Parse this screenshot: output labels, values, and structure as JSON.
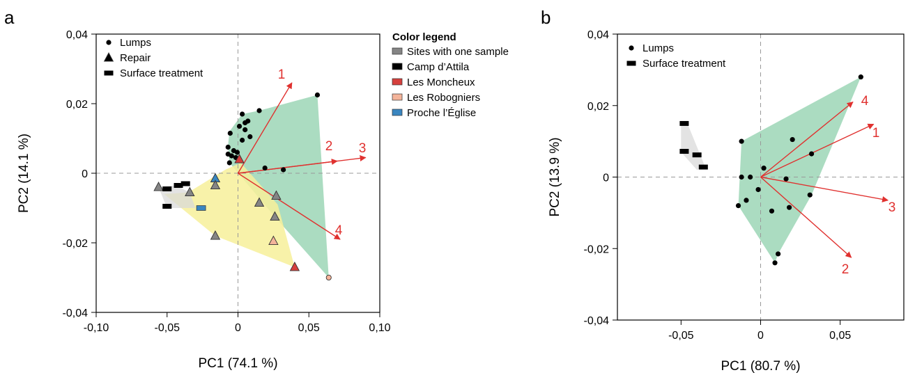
{
  "colors": {
    "one_sample": "#858585",
    "camp_attila": "#000000",
    "moncheux": "#d6403d",
    "robogniers": "#f4b49a",
    "proche_eglise": "#3a86c0",
    "hull_green": "#8fd0ac",
    "hull_yellow": "#f7f09a",
    "hull_grey": "#d9d9d9",
    "arrow": "#e0312f"
  },
  "chart_data": [
    {
      "panel": "a",
      "type": "scatter",
      "xlabel": "PC1 (74.1 %)",
      "ylabel": "PC2 (14.1 %)",
      "xlim": [
        -0.1,
        0.1
      ],
      "ylim": [
        -0.04,
        0.04
      ],
      "xticks": [
        -0.1,
        -0.05,
        0,
        0.05,
        0.1
      ],
      "xtick_labels": [
        "-0,10",
        "-0,05",
        "0",
        "0,05",
        "0,10"
      ],
      "yticks": [
        0.04,
        0.02,
        0,
        -0.02,
        -0.04
      ],
      "ytick_labels": [
        "0,04",
        "0,02",
        "0",
        "-0,02",
        "-0,04"
      ],
      "grid": false,
      "shape_legend": {
        "placement": "top-left",
        "items": [
          {
            "shape": "circle",
            "label": "Lumps"
          },
          {
            "shape": "triangle",
            "label": "Repair"
          },
          {
            "shape": "rect",
            "label": "Surface treatment"
          }
        ]
      },
      "color_legend": {
        "title": "Color legend",
        "placement": "right",
        "items": [
          {
            "color_key": "one_sample",
            "label": "Sites with one sample"
          },
          {
            "color_key": "camp_attila",
            "label": "Camp d’Attila"
          },
          {
            "color_key": "moncheux",
            "label": "Les Moncheux"
          },
          {
            "color_key": "robogniers",
            "label": "Les Robogniers"
          },
          {
            "color_key": "proche_eglise",
            "label": "Proche l’Église"
          }
        ]
      },
      "hulls": [
        {
          "color_key": "hull_green",
          "points": [
            [
              0.056,
              0.0225
            ],
            [
              0.064,
              -0.03
            ],
            [
              0.027,
              -0.013
            ],
            [
              -0.006,
              0.003
            ],
            [
              -0.007,
              0.008
            ],
            [
              -0.006,
              0.012
            ],
            [
              0.003,
              0.017
            ],
            [
              0.015,
              0.018
            ]
          ]
        },
        {
          "color_key": "hull_yellow",
          "points": [
            [
              -0.052,
              -0.006
            ],
            [
              -0.035,
              -0.0055
            ],
            [
              -0.009,
              0.001
            ],
            [
              0.002,
              0.003
            ],
            [
              0.028,
              -0.009
            ],
            [
              0.04,
              -0.027
            ],
            [
              -0.016,
              -0.018
            ]
          ]
        },
        {
          "color_key": "hull_grey",
          "points": [
            [
              -0.056,
              -0.004
            ],
            [
              -0.044,
              -0.0035
            ],
            [
              -0.034,
              -0.0055
            ],
            [
              -0.03,
              -0.01
            ],
            [
              -0.05,
              -0.01
            ]
          ]
        }
      ],
      "points": [
        {
          "x": 0.056,
          "y": 0.0225,
          "shape": "circle",
          "color_key": "camp_attila"
        },
        {
          "x": 0.015,
          "y": 0.018,
          "shape": "circle",
          "color_key": "camp_attila"
        },
        {
          "x": 0.003,
          "y": 0.017,
          "shape": "circle",
          "color_key": "camp_attila"
        },
        {
          "x": 0.007,
          "y": 0.015,
          "shape": "circle",
          "color_key": "camp_attila"
        },
        {
          "x": 0.005,
          "y": 0.0145,
          "shape": "circle",
          "color_key": "camp_attila"
        },
        {
          "x": 0.001,
          "y": 0.0135,
          "shape": "circle",
          "color_key": "camp_attila"
        },
        {
          "x": 0.005,
          "y": 0.0125,
          "shape": "circle",
          "color_key": "camp_attila"
        },
        {
          "x": -0.0055,
          "y": 0.0115,
          "shape": "circle",
          "color_key": "camp_attila"
        },
        {
          "x": 0.0085,
          "y": 0.0105,
          "shape": "circle",
          "color_key": "camp_attila"
        },
        {
          "x": 0.003,
          "y": 0.0095,
          "shape": "circle",
          "color_key": "camp_attila"
        },
        {
          "x": -0.007,
          "y": 0.0075,
          "shape": "circle",
          "color_key": "camp_attila"
        },
        {
          "x": -0.003,
          "y": 0.0065,
          "shape": "circle",
          "color_key": "camp_attila"
        },
        {
          "x": -0.0005,
          "y": 0.006,
          "shape": "circle",
          "color_key": "camp_attila"
        },
        {
          "x": -0.007,
          "y": 0.0055,
          "shape": "circle",
          "color_key": "camp_attila"
        },
        {
          "x": -0.0045,
          "y": 0.005,
          "shape": "circle",
          "color_key": "camp_attila"
        },
        {
          "x": -0.0015,
          "y": 0.0045,
          "shape": "circle",
          "color_key": "camp_attila"
        },
        {
          "x": -0.006,
          "y": 0.003,
          "shape": "circle",
          "color_key": "camp_attila"
        },
        {
          "x": 0.019,
          "y": 0.0015,
          "shape": "circle",
          "color_key": "camp_attila"
        },
        {
          "x": 0.032,
          "y": 0.001,
          "shape": "circle",
          "color_key": "camp_attila"
        },
        {
          "x": 0.064,
          "y": -0.03,
          "shape": "circle",
          "color_key": "robogniers"
        },
        {
          "x": 0.001,
          "y": 0.004,
          "shape": "triangle",
          "color_key": "moncheux"
        },
        {
          "x": 0.04,
          "y": -0.027,
          "shape": "triangle",
          "color_key": "moncheux"
        },
        {
          "x": 0.025,
          "y": -0.0195,
          "shape": "triangle",
          "color_key": "robogniers"
        },
        {
          "x": -0.016,
          "y": -0.0015,
          "shape": "triangle",
          "color_key": "proche_eglise"
        },
        {
          "x": -0.056,
          "y": -0.004,
          "shape": "triangle",
          "color_key": "one_sample"
        },
        {
          "x": -0.016,
          "y": -0.0035,
          "shape": "triangle",
          "color_key": "one_sample"
        },
        {
          "x": -0.034,
          "y": -0.0055,
          "shape": "triangle",
          "color_key": "one_sample"
        },
        {
          "x": 0.027,
          "y": -0.0065,
          "shape": "triangle",
          "color_key": "one_sample"
        },
        {
          "x": 0.015,
          "y": -0.0085,
          "shape": "triangle",
          "color_key": "one_sample"
        },
        {
          "x": 0.026,
          "y": -0.0125,
          "shape": "triangle",
          "color_key": "one_sample"
        },
        {
          "x": -0.016,
          "y": -0.018,
          "shape": "triangle",
          "color_key": "one_sample"
        },
        {
          "x": -0.05,
          "y": -0.0045,
          "shape": "rect",
          "color_key": "camp_attila"
        },
        {
          "x": -0.042,
          "y": -0.0035,
          "shape": "rect",
          "color_key": "camp_attila"
        },
        {
          "x": -0.037,
          "y": -0.003,
          "shape": "rect",
          "color_key": "camp_attila"
        },
        {
          "x": -0.05,
          "y": -0.0095,
          "shape": "rect",
          "color_key": "camp_attila"
        },
        {
          "x": -0.026,
          "y": -0.01,
          "shape": "rect",
          "color_key": "proche_eglise"
        }
      ],
      "vectors": [
        {
          "label": "1",
          "x": 0.038,
          "y": 0.026
        },
        {
          "label": "2",
          "x": 0.07,
          "y": 0.0035
        },
        {
          "label": "3",
          "x": 0.09,
          "y": 0.0045
        },
        {
          "label": "4",
          "x": 0.072,
          "y": -0.019
        }
      ]
    },
    {
      "panel": "b",
      "type": "scatter",
      "xlabel": "PC1 (80.7 %)",
      "ylabel": "PC2 (13.9 %)",
      "xlim": [
        -0.09,
        0.09
      ],
      "ylim": [
        -0.04,
        0.04
      ],
      "xticks": [
        -0.05,
        0,
        0.05
      ],
      "xtick_labels": [
        "-0,05",
        "0",
        "0,05"
      ],
      "yticks": [
        0.04,
        0.02,
        0,
        -0.02,
        -0.04
      ],
      "ytick_labels": [
        "0,04",
        "0,02",
        "0",
        "-0,02",
        "-0,04"
      ],
      "grid": false,
      "shape_legend": {
        "placement": "top-left",
        "items": [
          {
            "shape": "circle",
            "label": "Lumps"
          },
          {
            "shape": "rect",
            "label": "Surface treatment"
          }
        ]
      },
      "hulls": [
        {
          "color_key": "hull_green",
          "points": [
            [
              0.063,
              0.028
            ],
            [
              0.032,
              -0.005
            ],
            [
              0.011,
              -0.0215
            ],
            [
              0.009,
              -0.024
            ],
            [
              -0.014,
              -0.008
            ],
            [
              -0.012,
              0.01
            ]
          ]
        },
        {
          "color_key": "hull_grey",
          "points": [
            [
              -0.05,
              0.015
            ],
            [
              -0.046,
              0.015
            ],
            [
              -0.035,
              0.003
            ],
            [
              -0.04,
              0.002
            ],
            [
              -0.05,
              0.007
            ]
          ]
        }
      ],
      "points": [
        {
          "x": 0.063,
          "y": 0.028,
          "shape": "circle",
          "color_key": "camp_attila"
        },
        {
          "x": -0.012,
          "y": 0.01,
          "shape": "circle",
          "color_key": "camp_attila"
        },
        {
          "x": 0.02,
          "y": 0.0105,
          "shape": "circle",
          "color_key": "camp_attila"
        },
        {
          "x": 0.032,
          "y": 0.0065,
          "shape": "circle",
          "color_key": "camp_attila"
        },
        {
          "x": 0.002,
          "y": 0.0025,
          "shape": "circle",
          "color_key": "camp_attila"
        },
        {
          "x": -0.012,
          "y": 0,
          "shape": "circle",
          "color_key": "camp_attila"
        },
        {
          "x": -0.0065,
          "y": 0,
          "shape": "circle",
          "color_key": "camp_attila"
        },
        {
          "x": 0.016,
          "y": -0.0005,
          "shape": "circle",
          "color_key": "camp_attila"
        },
        {
          "x": -0.0015,
          "y": -0.0035,
          "shape": "circle",
          "color_key": "camp_attila"
        },
        {
          "x": 0.031,
          "y": -0.005,
          "shape": "circle",
          "color_key": "camp_attila"
        },
        {
          "x": -0.009,
          "y": -0.0065,
          "shape": "circle",
          "color_key": "camp_attila"
        },
        {
          "x": -0.014,
          "y": -0.008,
          "shape": "circle",
          "color_key": "camp_attila"
        },
        {
          "x": 0.018,
          "y": -0.0085,
          "shape": "circle",
          "color_key": "camp_attila"
        },
        {
          "x": 0.007,
          "y": -0.0095,
          "shape": "circle",
          "color_key": "camp_attila"
        },
        {
          "x": 0.011,
          "y": -0.0215,
          "shape": "circle",
          "color_key": "camp_attila"
        },
        {
          "x": 0.009,
          "y": -0.024,
          "shape": "circle",
          "color_key": "camp_attila"
        },
        {
          "x": -0.048,
          "y": 0.015,
          "shape": "rect",
          "color_key": "camp_attila"
        },
        {
          "x": -0.048,
          "y": 0.0072,
          "shape": "rect",
          "color_key": "camp_attila"
        },
        {
          "x": -0.04,
          "y": 0.0062,
          "shape": "rect",
          "color_key": "camp_attila"
        },
        {
          "x": -0.036,
          "y": 0.0028,
          "shape": "rect",
          "color_key": "camp_attila"
        }
      ],
      "vectors": [
        {
          "label": "4",
          "x": 0.058,
          "y": 0.021
        },
        {
          "label": "1",
          "x": 0.071,
          "y": 0.0148
        },
        {
          "label": "3",
          "x": 0.08,
          "y": -0.0065
        },
        {
          "label": "2",
          "x": 0.057,
          "y": -0.0225
        }
      ]
    }
  ]
}
